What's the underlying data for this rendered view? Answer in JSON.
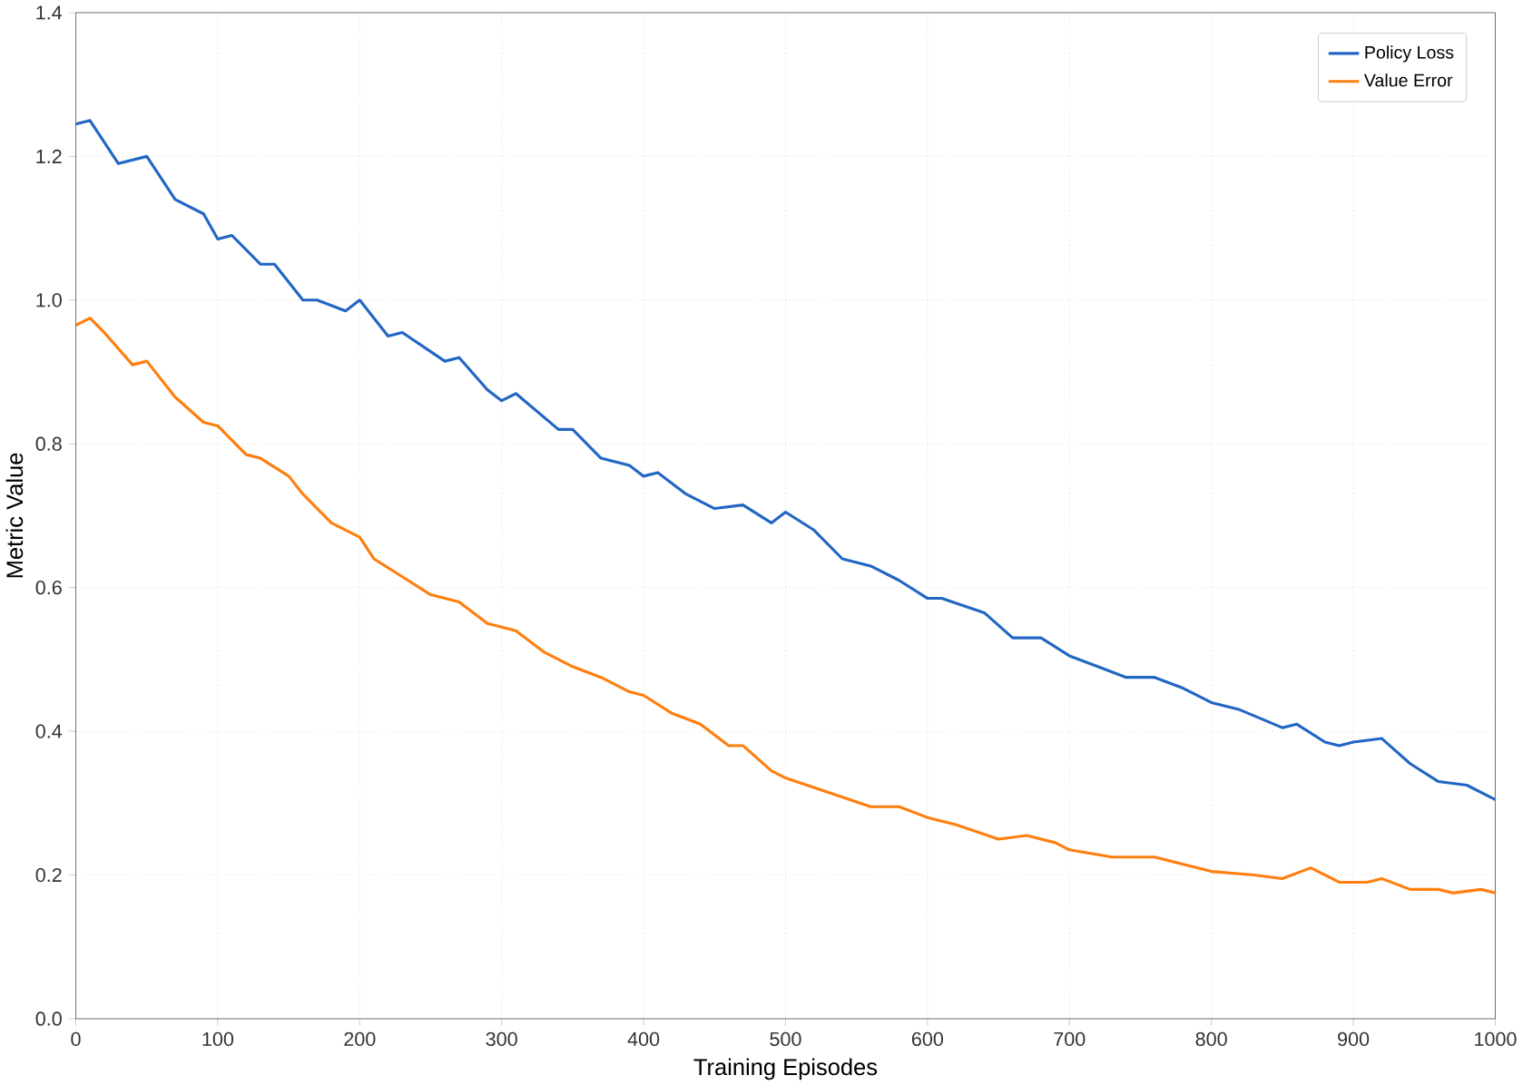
{
  "chart_data": {
    "type": "line",
    "xlabel": "Training Episodes",
    "ylabel": "Metric Value",
    "xlim": [
      0,
      1000
    ],
    "ylim": [
      0,
      1.4
    ],
    "xticks": [
      0,
      100,
      200,
      300,
      400,
      500,
      600,
      700,
      800,
      900,
      1000
    ],
    "yticks": [
      {
        "value": 0,
        "label": "0.0"
      },
      0.2,
      0.4,
      0.6,
      0.8,
      {
        "value": 1,
        "label": "1.0"
      },
      1.2,
      1.4
    ],
    "grid": true,
    "legend": "top right",
    "line_style": "solid",
    "marker": "none",
    "series": [
      {
        "name": "Policy Loss",
        "color": "#2266c4",
        "x": [
          0,
          10,
          30,
          40,
          50,
          60,
          70,
          90,
          100,
          110,
          130,
          140,
          160,
          170,
          190,
          200,
          220,
          230,
          260,
          270,
          290,
          300,
          310,
          340,
          350,
          370,
          390,
          400,
          410,
          430,
          450,
          470,
          490,
          500,
          520,
          540,
          560,
          580,
          600,
          610,
          640,
          660,
          680,
          700,
          720,
          740,
          760,
          780,
          800,
          820,
          850,
          860,
          880,
          890,
          900,
          920,
          940,
          960,
          980,
          1000
        ],
        "values": [
          1.245,
          1.25,
          1.19,
          1.195,
          1.2,
          1.17,
          1.14,
          1.12,
          1.085,
          1.09,
          1.05,
          1.05,
          1.0,
          1.0,
          0.985,
          1.0,
          0.95,
          0.955,
          0.915,
          0.92,
          0.875,
          0.86,
          0.87,
          0.82,
          0.82,
          0.78,
          0.77,
          0.755,
          0.76,
          0.73,
          0.71,
          0.715,
          0.69,
          0.705,
          0.68,
          0.64,
          0.63,
          0.61,
          0.585,
          0.585,
          0.565,
          0.53,
          0.53,
          0.505,
          0.49,
          0.475,
          0.475,
          0.46,
          0.44,
          0.43,
          0.405,
          0.41,
          0.385,
          0.38,
          0.385,
          0.39,
          0.355,
          0.33,
          0.325,
          0.305
        ]
      },
      {
        "name": "Value Error",
        "color": "#ff7f0e",
        "x": [
          0,
          10,
          20,
          40,
          50,
          70,
          90,
          100,
          120,
          130,
          150,
          160,
          180,
          200,
          210,
          230,
          250,
          270,
          290,
          310,
          330,
          350,
          370,
          390,
          400,
          420,
          440,
          460,
          470,
          490,
          500,
          530,
          560,
          580,
          600,
          620,
          650,
          670,
          690,
          700,
          730,
          760,
          790,
          800,
          830,
          850,
          870,
          890,
          910,
          920,
          940,
          960,
          970,
          990,
          1000
        ],
        "values": [
          0.965,
          0.975,
          0.955,
          0.91,
          0.915,
          0.865,
          0.83,
          0.825,
          0.785,
          0.78,
          0.755,
          0.73,
          0.69,
          0.67,
          0.64,
          0.615,
          0.59,
          0.58,
          0.55,
          0.54,
          0.51,
          0.49,
          0.475,
          0.455,
          0.45,
          0.425,
          0.41,
          0.38,
          0.38,
          0.345,
          0.335,
          0.315,
          0.295,
          0.295,
          0.28,
          0.27,
          0.25,
          0.255,
          0.245,
          0.235,
          0.225,
          0.225,
          0.21,
          0.205,
          0.2,
          0.195,
          0.21,
          0.19,
          0.19,
          0.195,
          0.18,
          0.18,
          0.175,
          0.18,
          0.175
        ]
      }
    ]
  }
}
